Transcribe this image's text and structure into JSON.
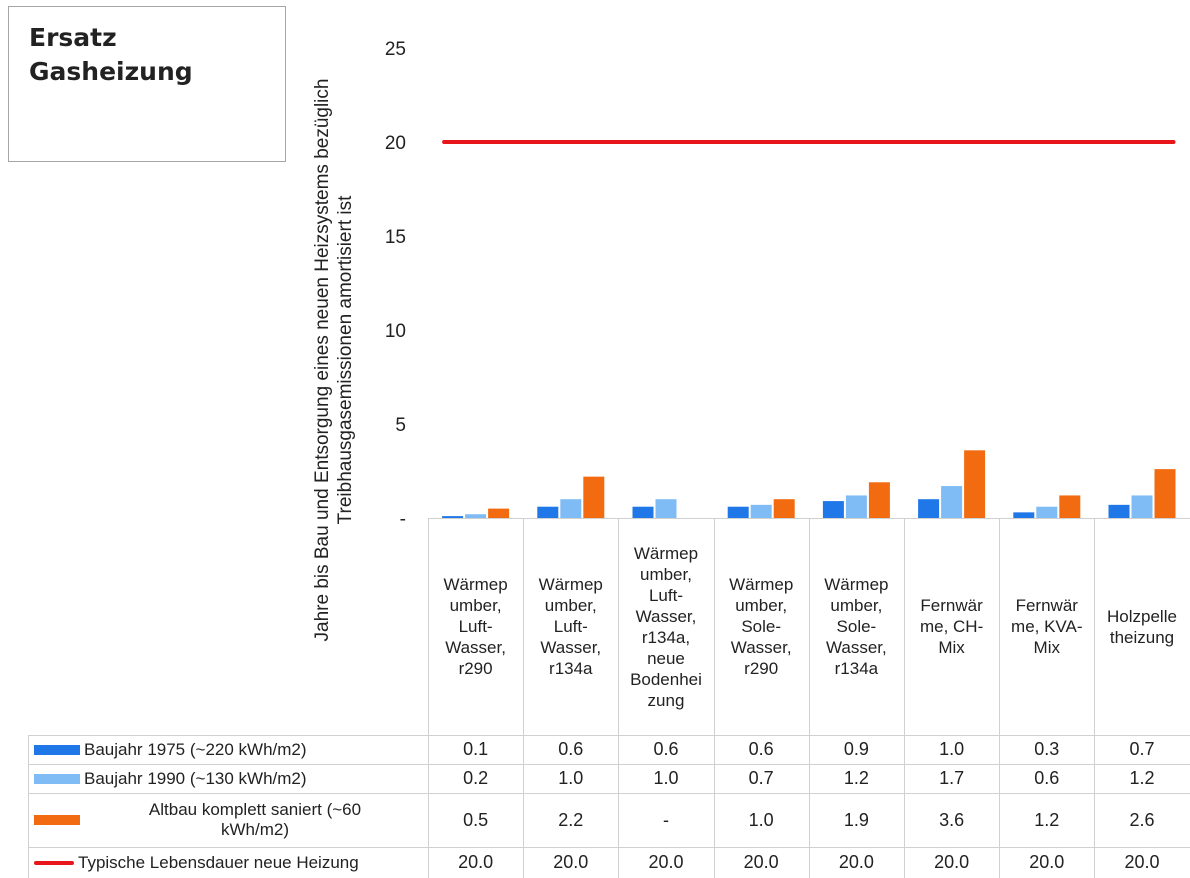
{
  "title": [
    "Ersatz",
    "Gasheizung"
  ],
  "chart_data": {
    "type": "bar",
    "ylabel": [
      "Jahre bis Bau und Entsorgung eines neuen Heizsystems bezüglich",
      "Treibhausgasemissionen amortisiert ist"
    ],
    "ylim": [
      0,
      25
    ],
    "yticks": [
      "-",
      "5",
      "10",
      "15",
      "20",
      "25"
    ],
    "grid": false,
    "categories": [
      "Wärmep\number,\nLuft-\nWasser,\nr290",
      "Wärmep\number,\nLuft-\nWasser,\nr134a",
      "Wärmep\number,\nLuft-\nWasser,\nr134a,\nneue\nBodenhei\nzung",
      "Wärmep\number,\nSole-\nWasser,\nr290",
      "Wärmep\number,\nSole-\nWasser,\nr134a",
      "Fernwär\nme, CH-\nMix",
      "Fernwär\nme, KVA-\nMix",
      "Holzpelle\ntheizung"
    ],
    "series": [
      {
        "name": "Baujahr 1975 (~220 kWh/m2)",
        "type": "bar",
        "color": "#1f77e8",
        "values": [
          0.1,
          0.6,
          0.6,
          0.6,
          0.9,
          1.0,
          0.3,
          0.7
        ],
        "labels": [
          "0.1",
          "0.6",
          "0.6",
          "0.6",
          "0.9",
          "1.0",
          "0.3",
          "0.7"
        ]
      },
      {
        "name": "Baujahr 1990 (~130 kWh/m2)",
        "type": "bar",
        "color": "#7fbcf5",
        "values": [
          0.2,
          1.0,
          1.0,
          0.7,
          1.2,
          1.7,
          0.6,
          1.2
        ],
        "labels": [
          "0.2",
          "1.0",
          "1.0",
          "0.7",
          "1.2",
          "1.7",
          "0.6",
          "1.2"
        ]
      },
      {
        "name": "Altbau komplett saniert (~60 kWh/m2)",
        "name_lines": [
          "Altbau komplett saniert (~60",
          "kWh/m2)"
        ],
        "type": "bar",
        "color": "#f26b10",
        "values": [
          0.5,
          2.2,
          null,
          1.0,
          1.9,
          3.6,
          1.2,
          2.6
        ],
        "labels": [
          "0.5",
          "2.2",
          "-",
          "1.0",
          "1.9",
          "3.6",
          "1.2",
          "2.6"
        ]
      },
      {
        "name": "Typische Lebensdauer neue Heizung",
        "type": "line",
        "color": "#e8161b",
        "values": [
          20.0,
          20.0,
          20.0,
          20.0,
          20.0,
          20.0,
          20.0,
          20.0
        ],
        "labels": [
          "20.0",
          "20.0",
          "20.0",
          "20.0",
          "20.0",
          "20.0",
          "20.0",
          "20.0"
        ]
      }
    ]
  }
}
